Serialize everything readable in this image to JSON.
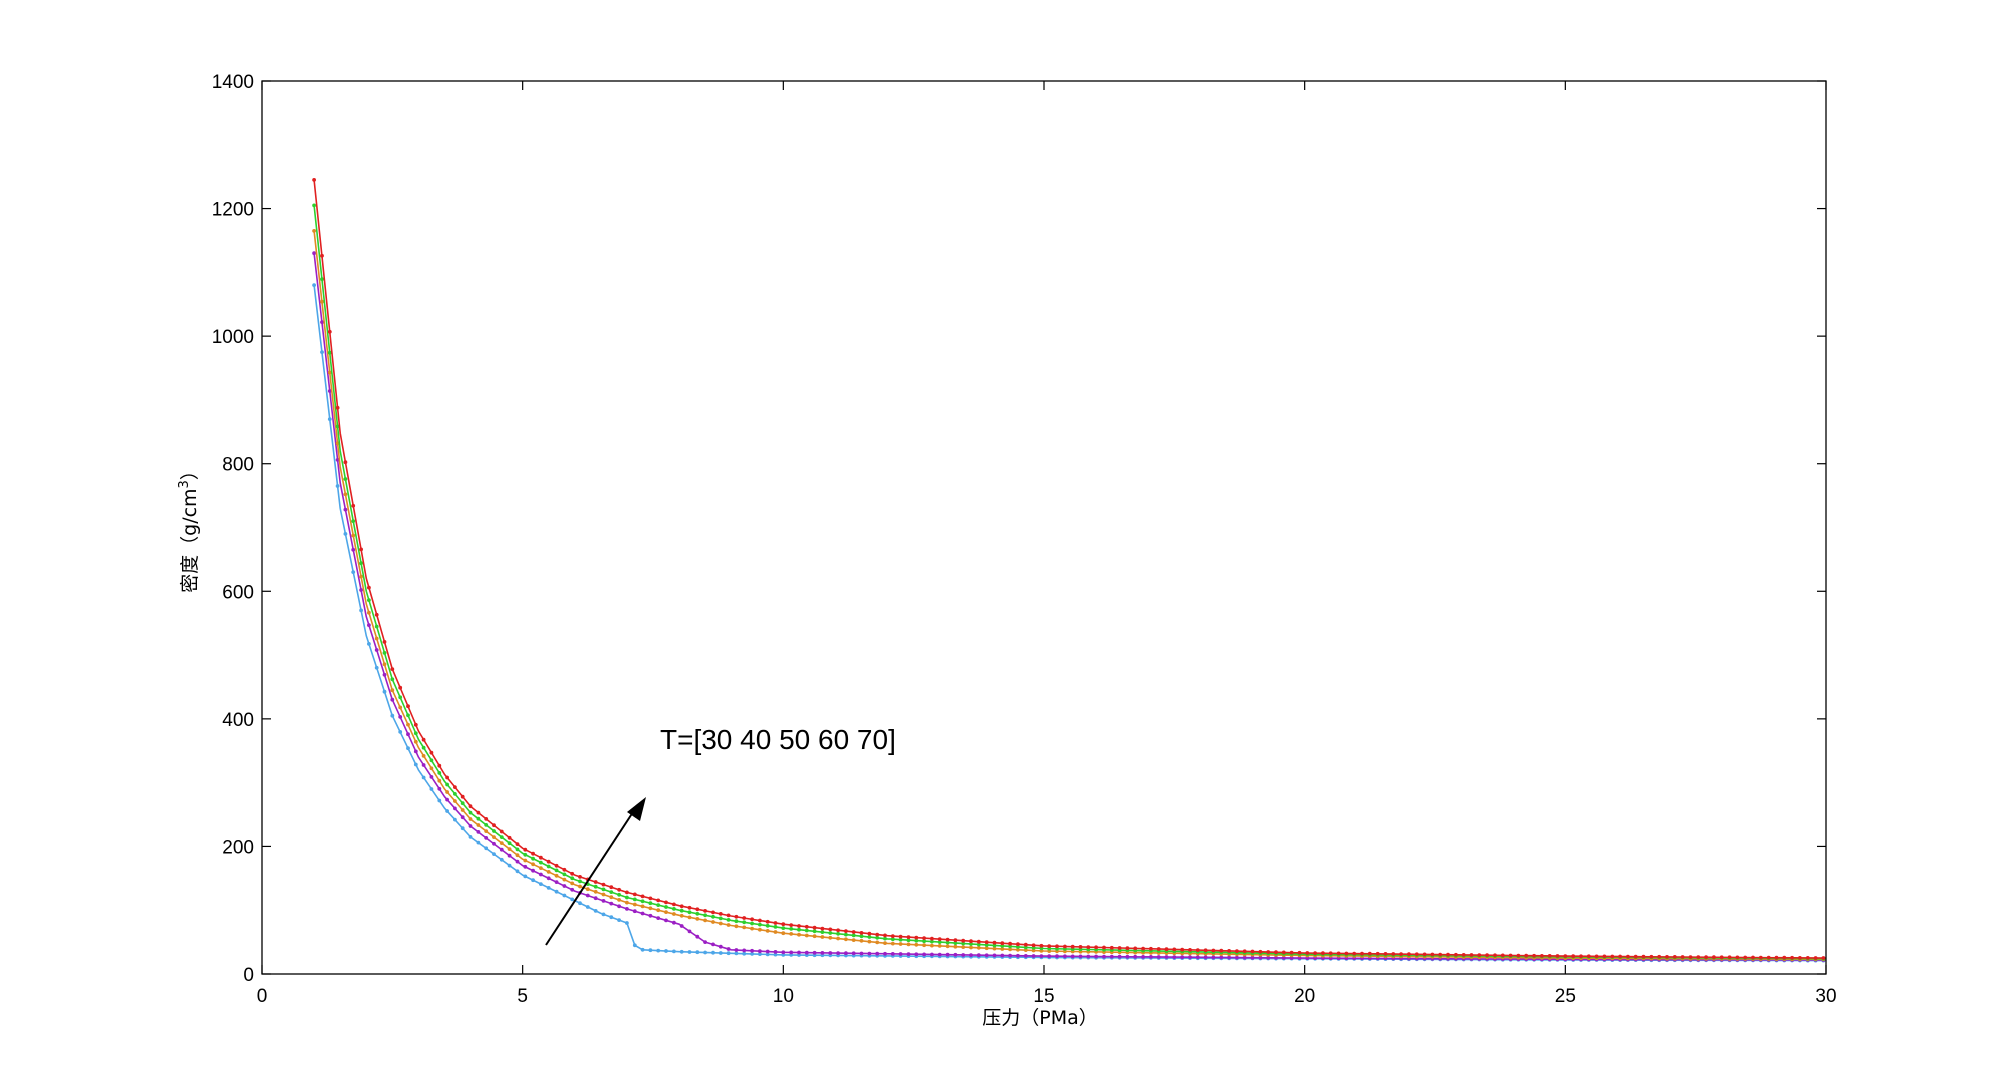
{
  "chart_data": {
    "type": "line",
    "xlabel": "压力（PMa）",
    "ylabel_main": "密度（g/cm",
    "ylabel_sup": "3",
    "ylabel_close": "）",
    "xlim": [
      0,
      30
    ],
    "ylim": [
      0,
      1400
    ],
    "xticks": [
      0,
      5,
      10,
      15,
      20,
      25,
      30
    ],
    "yticks": [
      0,
      200,
      400,
      600,
      800,
      1000,
      1200,
      1400
    ],
    "grid": false,
    "annotation": "T=[30 40 50 60 70]",
    "series": [
      {
        "color": "#4da6e8",
        "x": [
          1.0,
          1.5,
          2.0,
          2.5,
          3.0,
          3.5,
          4.0,
          5.0,
          6.0,
          6.5,
          7.0,
          7.15,
          7.3,
          8,
          10,
          15,
          20,
          25,
          30
        ],
        "y": [
          1080,
          730,
          530,
          405,
          320,
          260,
          215,
          155,
          115,
          95,
          80,
          45,
          38,
          35,
          30,
          26,
          24,
          22,
          21
        ]
      },
      {
        "color": "#9b1fc4",
        "x": [
          1.0,
          1.5,
          2.0,
          2.5,
          3.0,
          3.5,
          4.0,
          5.0,
          6.0,
          7.0,
          8.0,
          8.5,
          9,
          10,
          15,
          20,
          25,
          30
        ],
        "y": [
          1130,
          770,
          560,
          430,
          340,
          278,
          232,
          170,
          130,
          102,
          78,
          50,
          38,
          34,
          28,
          25,
          23,
          22
        ]
      },
      {
        "color": "#e08a22",
        "x": [
          1.0,
          1.5,
          2.0,
          2.5,
          3.0,
          3.5,
          4.0,
          5.0,
          6.0,
          7.0,
          8.0,
          9.0,
          10.0,
          12,
          15,
          20,
          25,
          30
        ],
        "y": [
          1165,
          795,
          580,
          445,
          355,
          290,
          243,
          180,
          140,
          112,
          92,
          76,
          64,
          48,
          36,
          29,
          25,
          23
        ]
      },
      {
        "color": "#2dcf2d",
        "x": [
          1.0,
          1.5,
          2.0,
          2.5,
          3.0,
          3.5,
          4.0,
          5.0,
          6.0,
          7.0,
          8.0,
          9.0,
          10.0,
          12,
          15,
          20,
          25,
          30
        ],
        "y": [
          1205,
          820,
          600,
          462,
          368,
          302,
          253,
          189,
          148,
          120,
          100,
          84,
          72,
          55,
          40,
          31,
          27,
          24
        ]
      },
      {
        "color": "#e02020",
        "x": [
          1.0,
          1.5,
          2.0,
          2.5,
          3.0,
          3.5,
          4.0,
          5.0,
          6.0,
          7.0,
          8.0,
          9.0,
          10.0,
          12,
          15,
          20,
          25,
          30
        ],
        "y": [
          1245,
          848,
          620,
          478,
          381,
          313,
          263,
          197,
          155,
          128,
          107,
          91,
          78,
          60,
          44,
          33,
          28,
          25
        ]
      }
    ]
  }
}
